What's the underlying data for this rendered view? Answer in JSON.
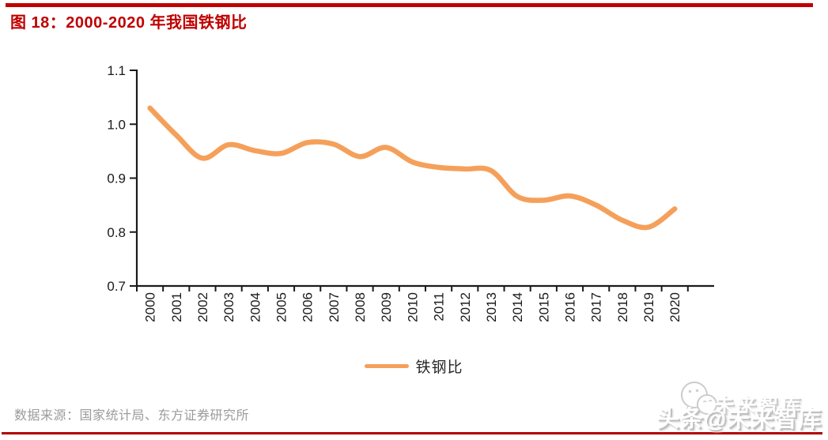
{
  "page": {
    "title": "图 18：2000-2020 年我国铁钢比",
    "source": "数据来源：国家统计局、东方证券研究所",
    "watermark_main": "头条@未来智库",
    "watermark_ghost": "未来智库",
    "colors": {
      "accent_red": "#c00000",
      "bottom_rule_red": "#b20000",
      "line_orange": "#f5a05a",
      "axis_black": "#1a1a1a",
      "source_gray": "#9b9b9b"
    }
  },
  "chart_data": {
    "type": "line",
    "title": "2000-2020 年我国铁钢比",
    "xlabel": "",
    "ylabel": "",
    "categories": [
      "2000",
      "2001",
      "2002",
      "2003",
      "2004",
      "2005",
      "2006",
      "2007",
      "2008",
      "2009",
      "2010",
      "2011",
      "2012",
      "2013",
      "2014",
      "2015",
      "2016",
      "2017",
      "2018",
      "2019",
      "2020"
    ],
    "series": [
      {
        "name": "铁钢比",
        "color": "#f5a05a",
        "values": [
          1.03,
          0.98,
          0.937,
          0.962,
          0.951,
          0.946,
          0.966,
          0.963,
          0.94,
          0.957,
          0.93,
          0.92,
          0.917,
          0.914,
          0.866,
          0.859,
          0.867,
          0.85,
          0.822,
          0.809,
          0.843
        ]
      }
    ],
    "ylim": [
      0.7,
      1.1
    ],
    "yticks": [
      0.7,
      0.8,
      0.9,
      1.0,
      1.1
    ],
    "grid": false,
    "smooth": true,
    "legend_position": "bottom"
  }
}
